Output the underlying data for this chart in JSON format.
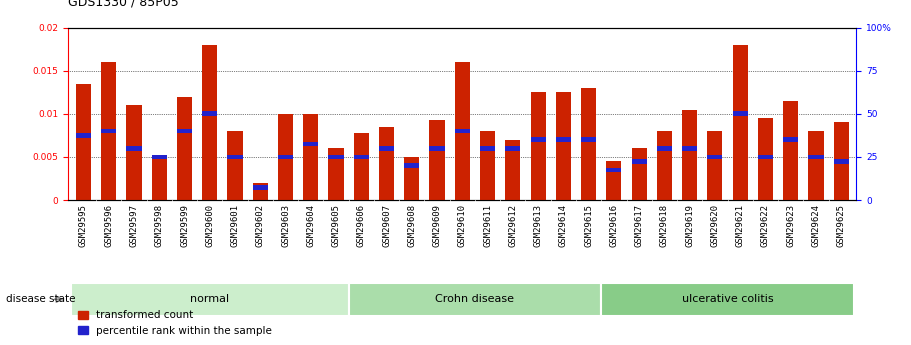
{
  "title": "GDS1330 / 85P05",
  "samples": [
    "GSM29595",
    "GSM29596",
    "GSM29597",
    "GSM29598",
    "GSM29599",
    "GSM29600",
    "GSM29601",
    "GSM29602",
    "GSM29603",
    "GSM29604",
    "GSM29605",
    "GSM29606",
    "GSM29607",
    "GSM29608",
    "GSM29609",
    "GSM29610",
    "GSM29611",
    "GSM29612",
    "GSM29613",
    "GSM29614",
    "GSM29615",
    "GSM29616",
    "GSM29617",
    "GSM29618",
    "GSM29619",
    "GSM29620",
    "GSM29621",
    "GSM29622",
    "GSM29623",
    "GSM29624",
    "GSM29625"
  ],
  "transformed_count": [
    0.0135,
    0.016,
    0.011,
    0.005,
    0.012,
    0.018,
    0.008,
    0.002,
    0.01,
    0.01,
    0.006,
    0.0078,
    0.0085,
    0.005,
    0.0093,
    0.016,
    0.008,
    0.007,
    0.0125,
    0.0125,
    0.013,
    0.0045,
    0.006,
    0.008,
    0.0105,
    0.008,
    0.018,
    0.0095,
    0.0115,
    0.008,
    0.009
  ],
  "percentile_rank_scaled": [
    0.0075,
    0.008,
    0.006,
    0.005,
    0.008,
    0.01,
    0.005,
    0.0015,
    0.005,
    0.0065,
    0.005,
    0.005,
    0.006,
    0.004,
    0.006,
    0.008,
    0.006,
    0.006,
    0.007,
    0.007,
    0.007,
    0.0035,
    0.0045,
    0.006,
    0.006,
    0.005,
    0.01,
    0.005,
    0.007,
    0.005,
    0.0045
  ],
  "bar_color_red": "#CC2200",
  "bar_color_blue": "#2222CC",
  "ylim_left": [
    0,
    0.02
  ],
  "ylim_right": [
    0,
    100
  ],
  "yticks_left": [
    0,
    0.005,
    0.01,
    0.015,
    0.02
  ],
  "yticks_right": [
    0,
    25,
    50,
    75,
    100
  ],
  "background_color": "#ffffff",
  "plot_bg": "#ffffff",
  "groups_info": [
    {
      "label": "normal",
      "start": 0,
      "end": 10,
      "color": "#cceecc"
    },
    {
      "label": "Crohn disease",
      "start": 11,
      "end": 20,
      "color": "#aaddaa"
    },
    {
      "label": "ulcerative colitis",
      "start": 21,
      "end": 30,
      "color": "#88cc88"
    }
  ],
  "disease_state_label": "disease state",
  "legend_items": [
    "transformed count",
    "percentile rank within the sample"
  ],
  "title_fontsize": 9,
  "tick_fontsize": 6.5,
  "label_fontsize": 8
}
